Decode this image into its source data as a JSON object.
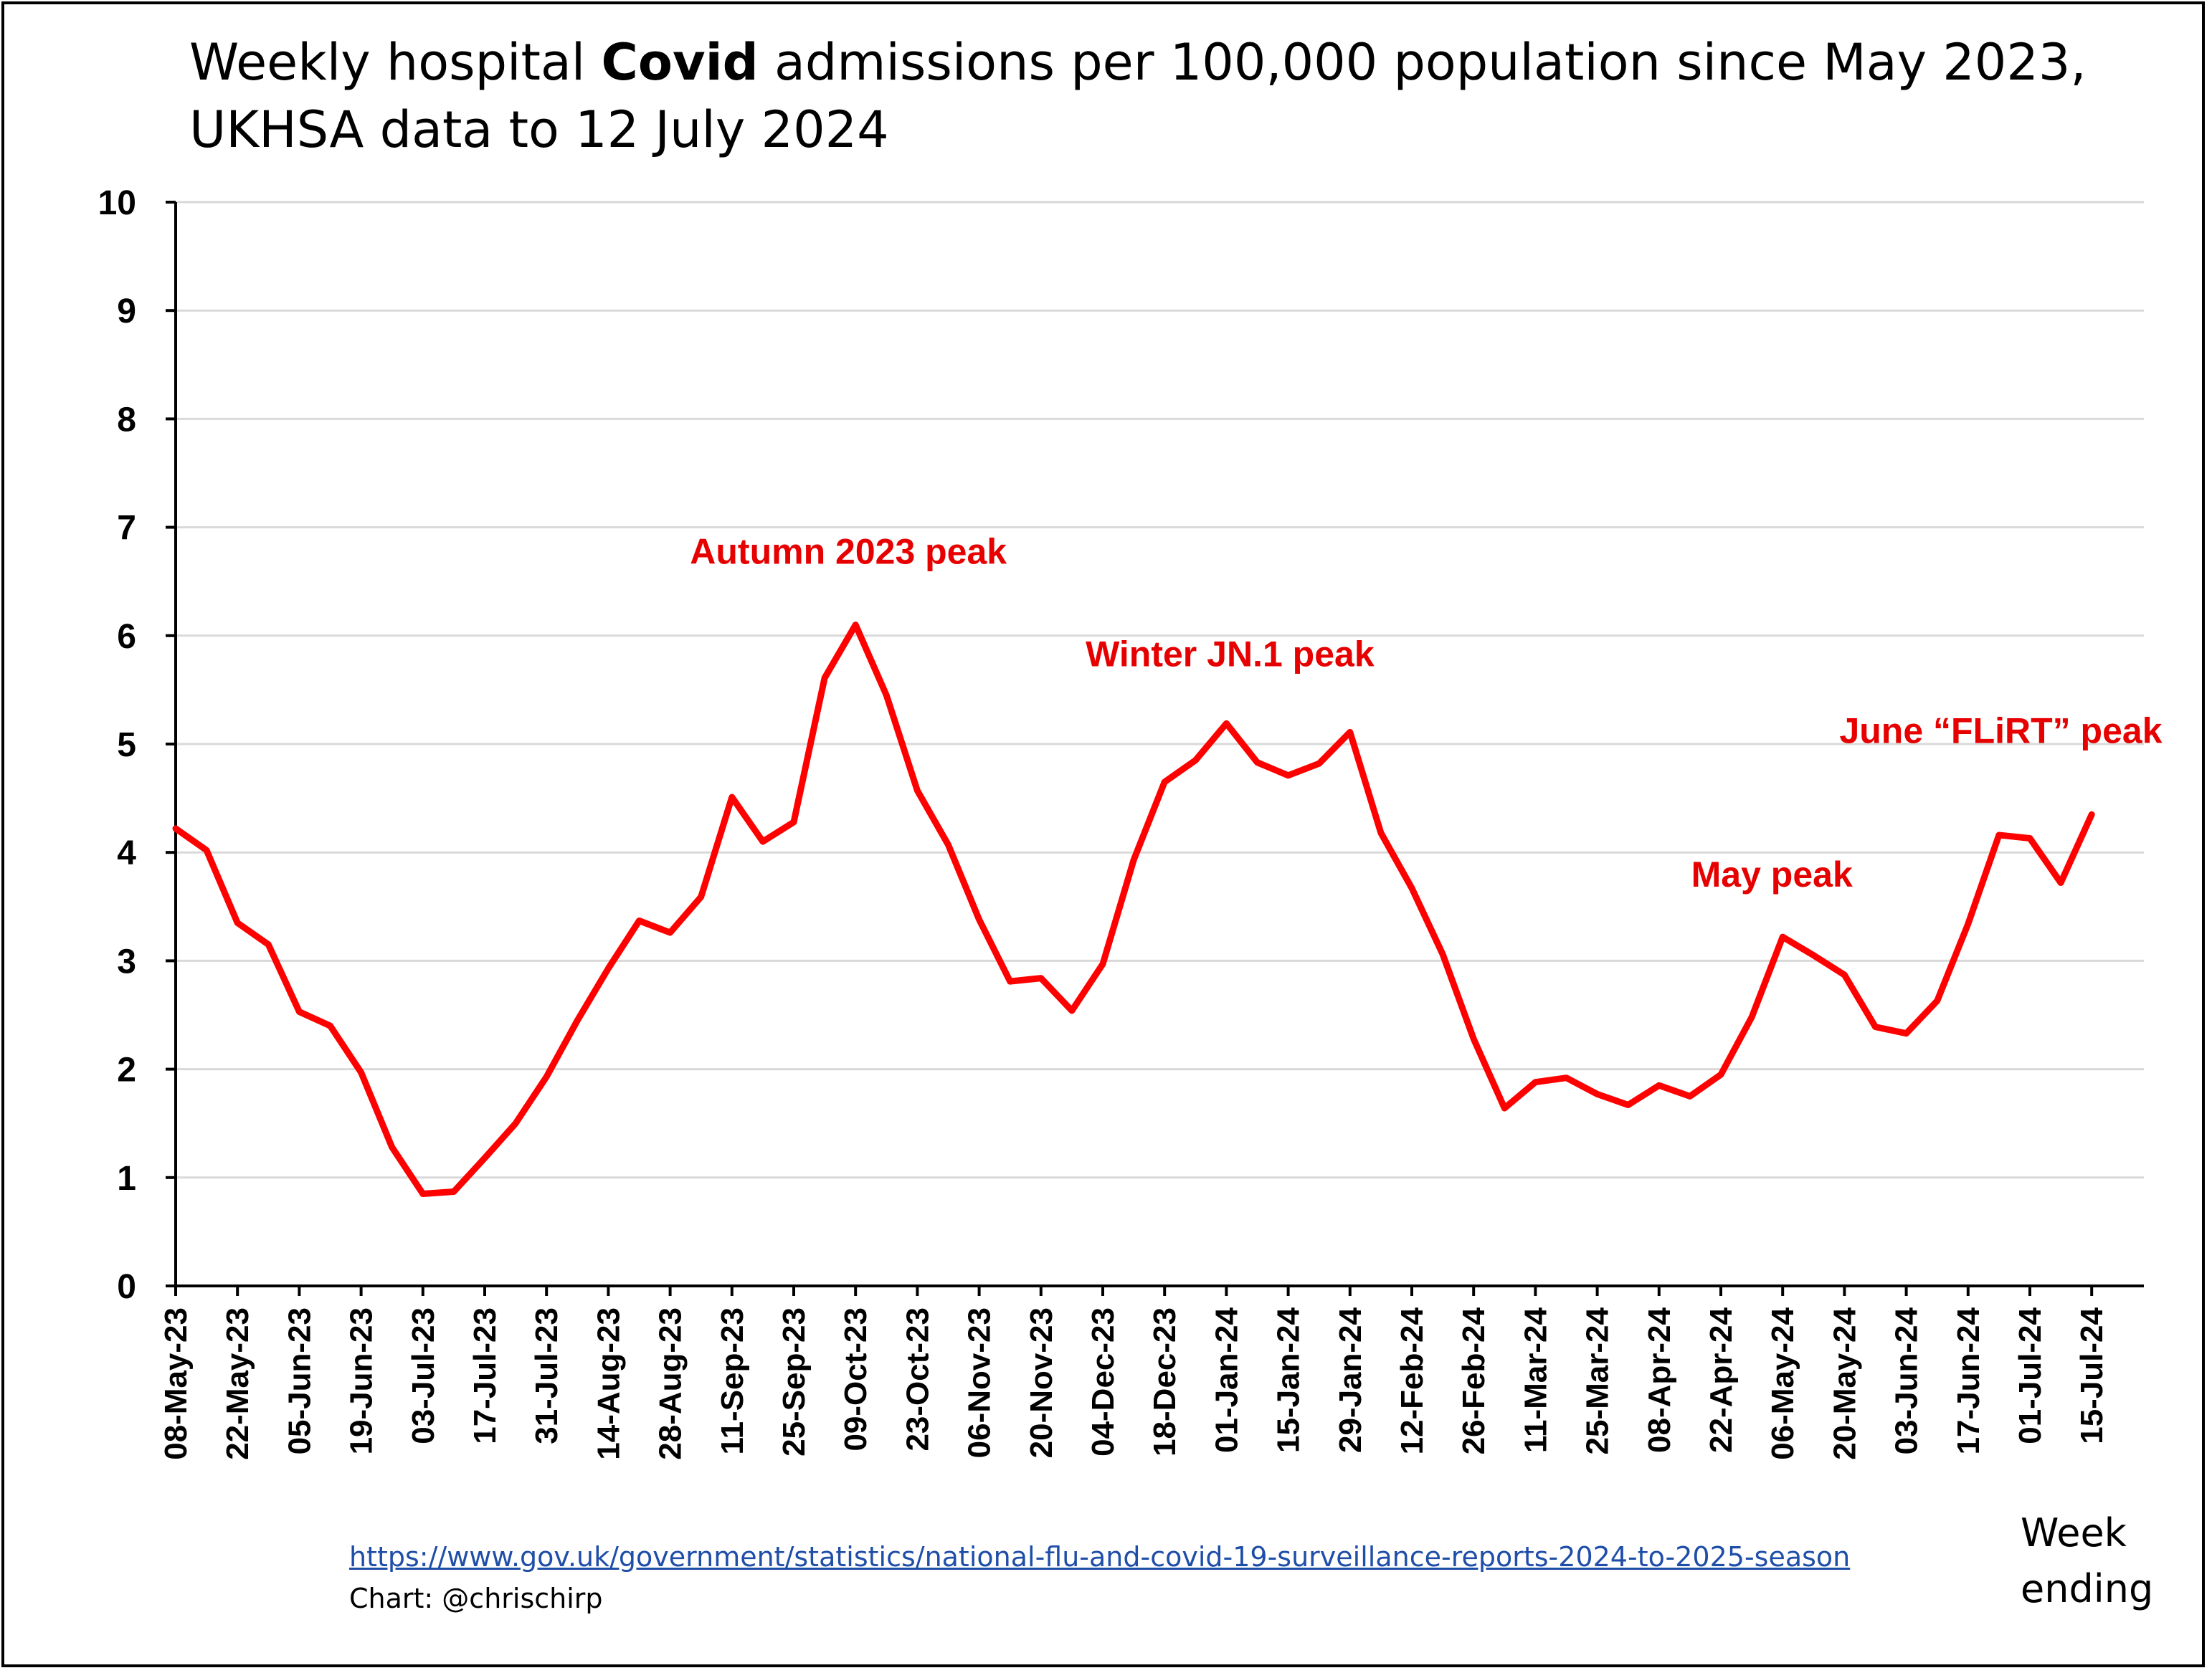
{
  "title": {
    "line1_before": "Weekly hospital ",
    "line1_bold": "Covid",
    "line1_after": " admissions per 100,000 population since May 2023,",
    "line2": "UKHSA data to 12 July 2024"
  },
  "footer": {
    "source_url": "https://www.gov.uk/government/statistics/national-flu-and-covid-19-surveillance-reports-2024-to-2025-season",
    "credit": "Chart: @chrischirp",
    "week_label": "Week",
    "ending_label": "ending"
  },
  "colors": {
    "series": "#ff0000",
    "annotation": "#e60000",
    "grid": "#d9d9d9",
    "axis": "#000000"
  },
  "chart_data": {
    "type": "line",
    "ylim": [
      0,
      10
    ],
    "yticks": [
      0,
      1,
      2,
      3,
      4,
      5,
      6,
      7,
      8,
      9,
      10
    ],
    "grid": "horizontal",
    "xtick_labels": [
      "08-May-23",
      "22-May-23",
      "05-Jun-23",
      "19-Jun-23",
      "03-Jul-23",
      "17-Jul-23",
      "31-Jul-23",
      "14-Aug-23",
      "28-Aug-23",
      "11-Sep-23",
      "25-Sep-23",
      "09-Oct-23",
      "23-Oct-23",
      "06-Nov-23",
      "20-Nov-23",
      "04-Dec-23",
      "18-Dec-23",
      "01-Jan-24",
      "15-Jan-24",
      "29-Jan-24",
      "12-Feb-24",
      "26-Feb-24",
      "11-Mar-24",
      "25-Mar-24",
      "08-Apr-24",
      "22-Apr-24",
      "06-May-24",
      "20-May-24",
      "03-Jun-24",
      "17-Jun-24",
      "01-Jul-24",
      "15-Jul-24"
    ],
    "series": [
      {
        "values": [
          4.22,
          4.02,
          3.35,
          3.15,
          2.53,
          2.4,
          1.97,
          1.28,
          0.85,
          0.87,
          1.18,
          1.5,
          1.93,
          2.45,
          2.93,
          3.37,
          3.26,
          3.59,
          4.51,
          4.1,
          4.28,
          5.61,
          6.1,
          5.45,
          4.57,
          4.07,
          3.38,
          2.81,
          2.84,
          2.54,
          2.97,
          3.93,
          4.65,
          4.85,
          5.19,
          4.83,
          4.71,
          4.82,
          5.11,
          4.18,
          3.67,
          3.06,
          2.28,
          1.64,
          1.88,
          1.92,
          1.77,
          1.67,
          1.85,
          1.75,
          1.95,
          2.48,
          3.22,
          3.05,
          2.87,
          2.39,
          2.33,
          2.63,
          3.34,
          4.16,
          4.13,
          3.72,
          4.35
        ]
      }
    ],
    "annotations": [
      {
        "text": "Autumn 2023 peak",
        "anchor_index": 22
      },
      {
        "text": "Winter JN.1 peak",
        "anchor_index": 34
      },
      {
        "text": "May peak",
        "anchor_index": 52
      },
      {
        "text": "June “FLiRT” peak",
        "anchor_index": 62
      }
    ]
  }
}
